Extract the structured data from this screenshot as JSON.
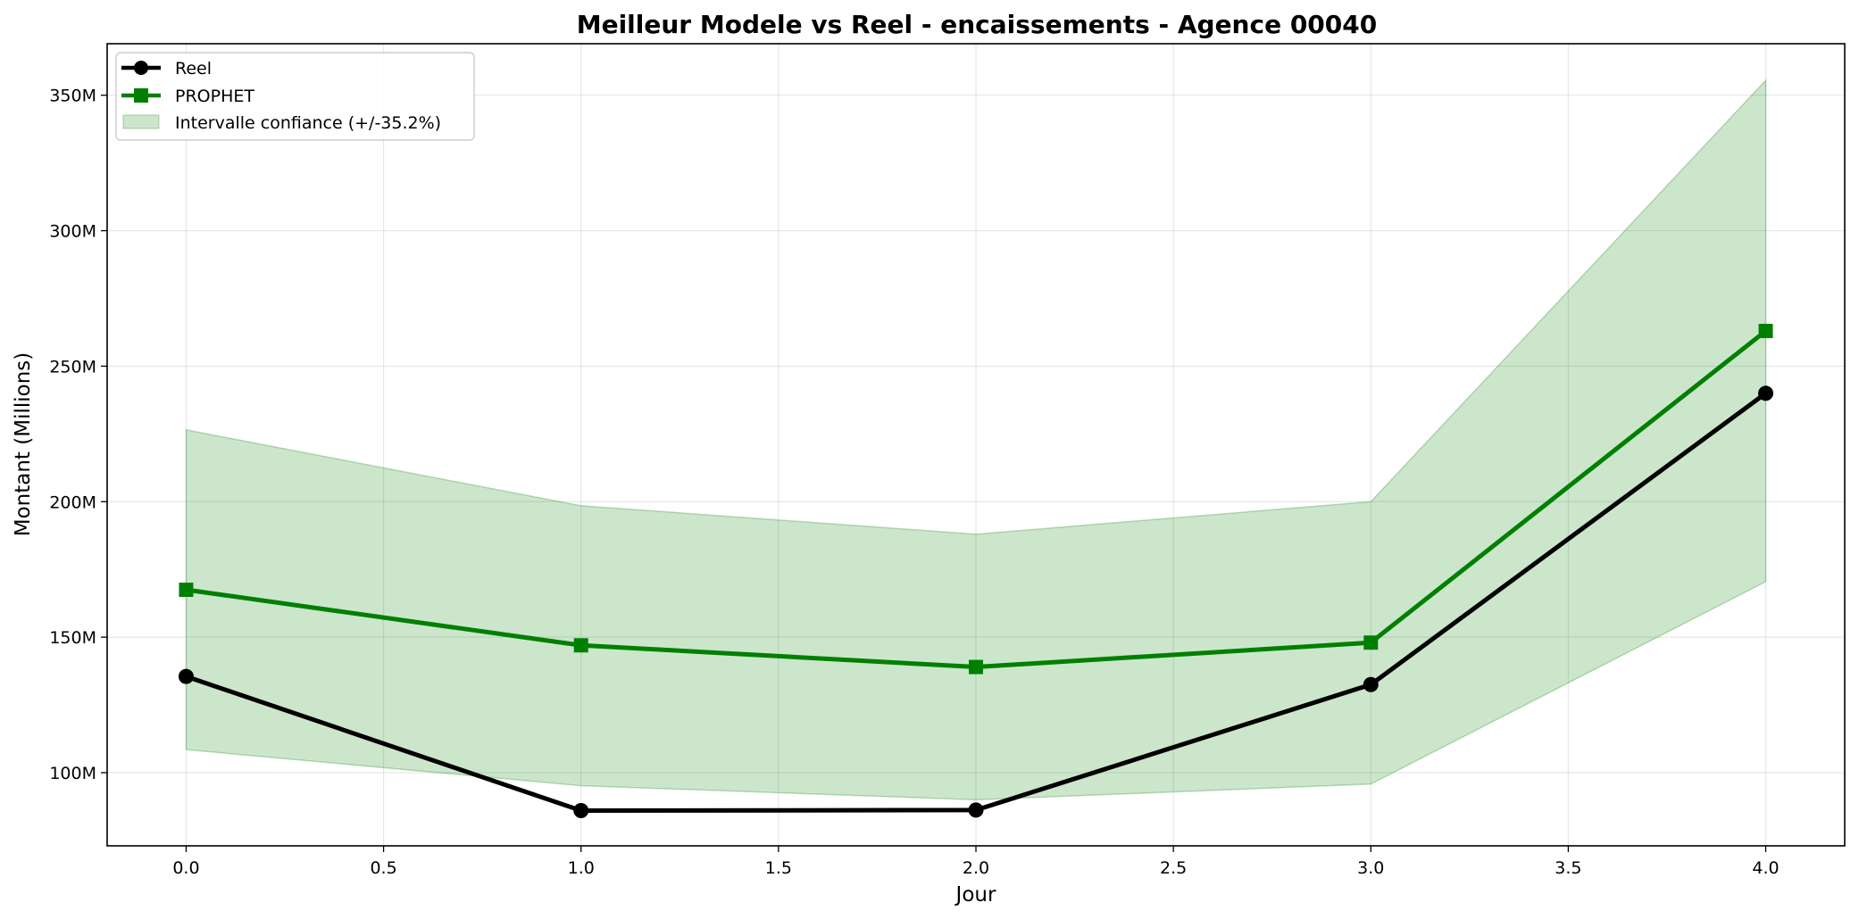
{
  "chart_data": {
    "type": "line",
    "title": "Meilleur Modele vs Reel - encaissements - Agence 00040",
    "xlabel": "Jour",
    "ylabel": "Montant (Millions)",
    "x": [
      0,
      1,
      2,
      3,
      4
    ],
    "xlim": [
      -0.2,
      4.2
    ],
    "ylim": [
      73,
      369
    ],
    "x_ticks": [
      0,
      0.5,
      1,
      1.5,
      2,
      2.5,
      3,
      3.5,
      4
    ],
    "x_tick_labels": [
      "0.0",
      "0.5",
      "1.0",
      "1.5",
      "2.0",
      "2.5",
      "3.0",
      "3.5",
      "4.0"
    ],
    "y_ticks": [
      100,
      150,
      200,
      250,
      300,
      350
    ],
    "y_tick_labels": [
      "100M",
      "150M",
      "200M",
      "250M",
      "300M",
      "350M"
    ],
    "grid": true,
    "legend_position": "top-left",
    "series": [
      {
        "name": "Reel",
        "values": [
          135.5,
          86.0,
          86.2,
          132.5,
          240.0
        ],
        "color": "#000000",
        "marker": "circle"
      },
      {
        "name": "PROPHET",
        "values": [
          167.5,
          147.0,
          139.0,
          148.0,
          263.0
        ],
        "color": "#008000",
        "marker": "square"
      }
    ],
    "band": {
      "name": "Intervalle confiance (+/-35.2%)",
      "upper": [
        226.5,
        198.5,
        188.0,
        200.0,
        355.5
      ],
      "lower": [
        108.5,
        95.2,
        90.0,
        95.8,
        170.5
      ],
      "color": "#008000"
    }
  }
}
